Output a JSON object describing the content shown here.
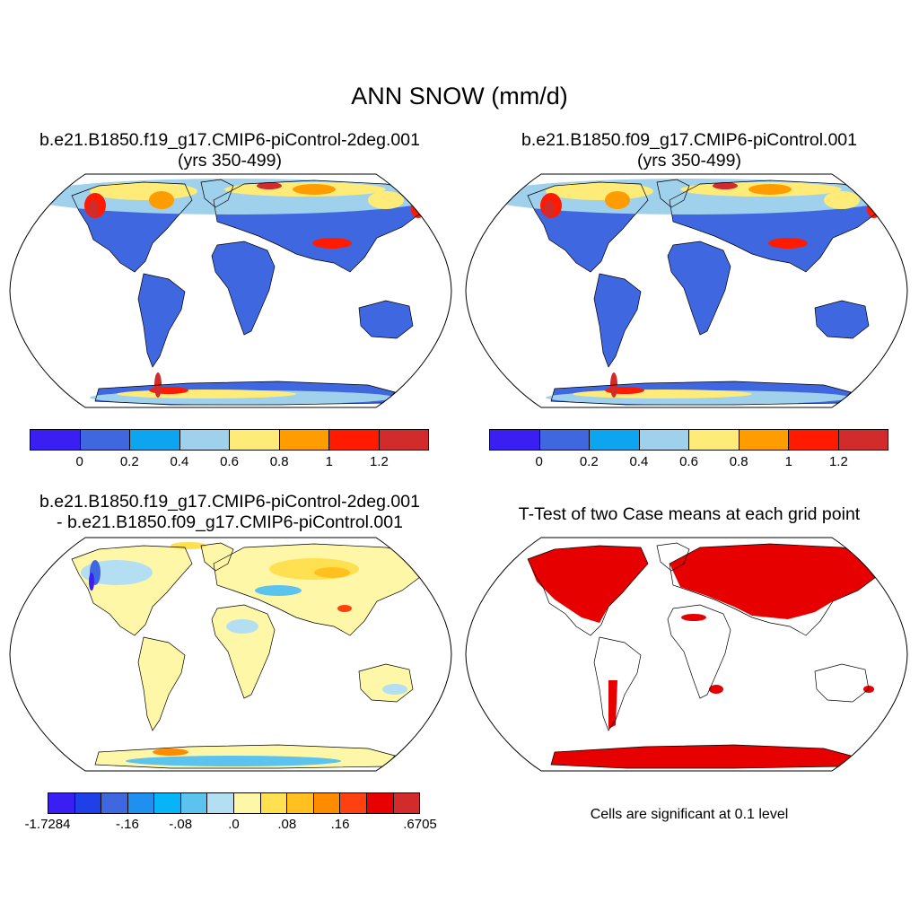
{
  "title": "ANN SNOW (mm/d)",
  "panels": [
    {
      "id": "case1",
      "title_lines": [
        "b.e21.B1850.f19_g17.CMIP6-piControl-2deg.001",
        "(yrs 350-499)"
      ],
      "colorbar": {
        "colors": [
          "#3b1ff2",
          "#3f67e0",
          "#0ea5f0",
          "#9fd0ec",
          "#ffec78",
          "#ff9c00",
          "#ff1a00",
          "#d12b2b"
        ],
        "ticks": [
          "0",
          "0.2",
          "0.4",
          "0.6",
          "0.8",
          "1",
          "1.2"
        ]
      }
    },
    {
      "id": "case2",
      "title_lines": [
        "b.e21.B1850.f09_g17.CMIP6-piControl.001",
        "(yrs 350-499)"
      ],
      "colorbar": {
        "colors": [
          "#3b1ff2",
          "#3f67e0",
          "#0ea5f0",
          "#9fd0ec",
          "#ffec78",
          "#ff9c00",
          "#ff1a00",
          "#d12b2b"
        ],
        "ticks": [
          "0",
          "0.2",
          "0.4",
          "0.6",
          "0.8",
          "1",
          "1.2"
        ]
      }
    },
    {
      "id": "diff",
      "title_lines": [
        "b.e21.B1850.f19_g17.CMIP6-piControl-2deg.001",
        "- b.e21.B1850.f09_g17.CMIP6-piControl.001"
      ],
      "colorbar": {
        "colors": [
          "#3b1ff2",
          "#1f3fe8",
          "#3f67e0",
          "#1f8ff0",
          "#08b4f8",
          "#5cc2ee",
          "#b4def2",
          "#fff7a8",
          "#ffe050",
          "#ffc020",
          "#ff8c00",
          "#ff4010",
          "#e60000",
          "#d12b2b"
        ],
        "ticks": [
          "-1.7284",
          "-.16",
          "-.08",
          ".0",
          ".08",
          ".16",
          ".6705"
        ]
      }
    },
    {
      "id": "ttest",
      "title_lines": [
        "T-Test of two Case means at each grid point"
      ],
      "footnote": "Cells are significant at 0.1 level"
    }
  ],
  "colors": {
    "land_base": "#3f67e0",
    "land_diff": "#fff7a8",
    "significant": "#e60000"
  }
}
